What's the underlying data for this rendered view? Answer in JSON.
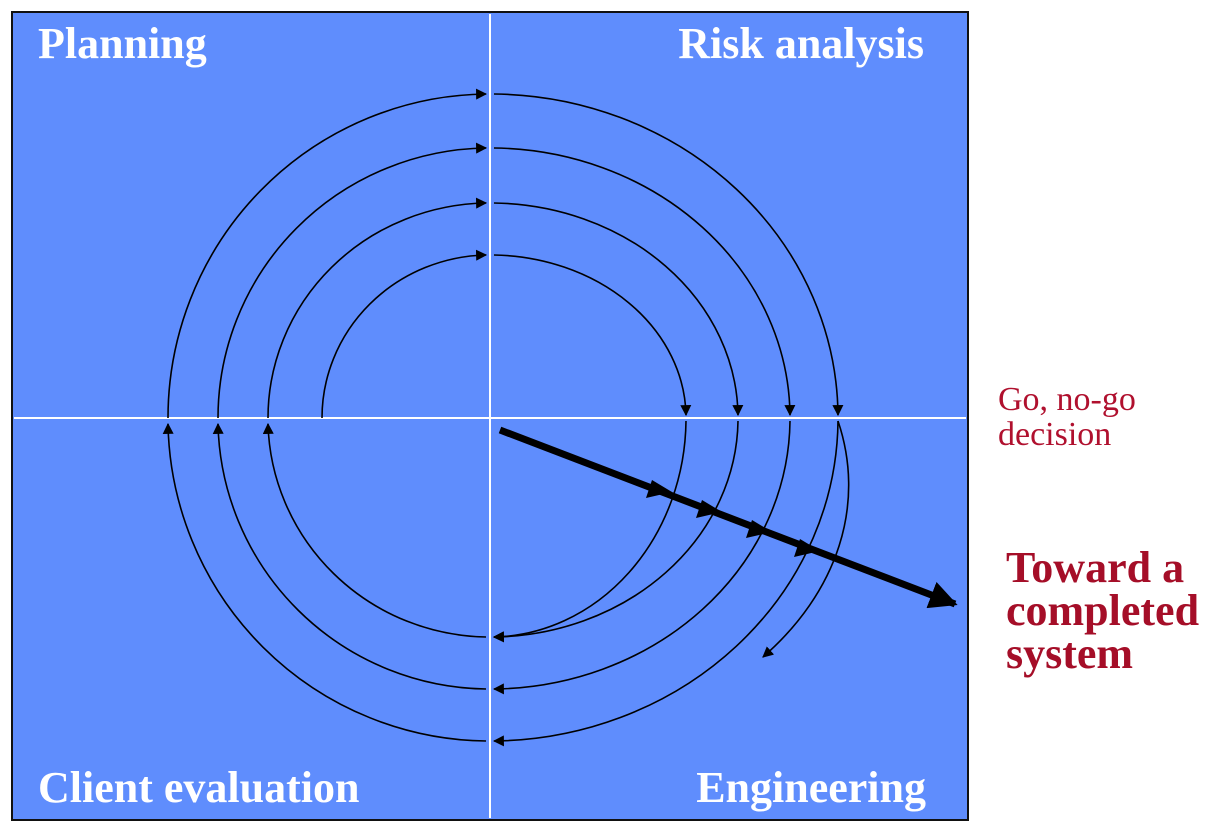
{
  "colors": {
    "panel": "#5f8dfd",
    "panel_border": "#111111",
    "axis": "#ffffff",
    "spiral": "#000000",
    "annotation": "#b0102e"
  },
  "quadrants": {
    "top_left": "Planning",
    "top_right": "Risk analysis",
    "bottom_left": "Client evaluation",
    "bottom_right": "Engineering"
  },
  "annotations": {
    "go_nogo": [
      "Go, no-go",
      "decision"
    ],
    "toward": [
      "Toward a",
      "completed",
      "system"
    ]
  }
}
